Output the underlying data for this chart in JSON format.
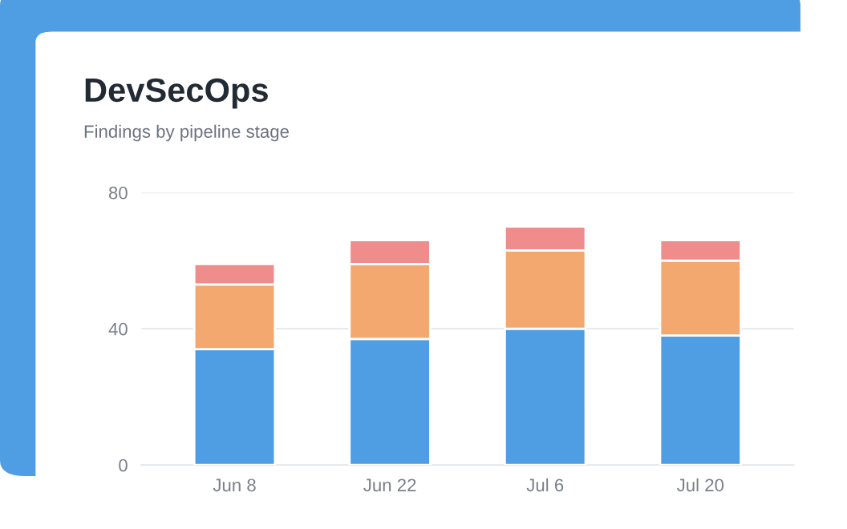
{
  "chart_data": {
    "type": "bar",
    "title": "DevSecOps",
    "subtitle": "Findings by pipeline stage",
    "categories": [
      "Jun 8",
      "Jun 22",
      "Jul 6",
      "Jul 20"
    ],
    "stacked": true,
    "series": [
      {
        "color": "#4f9de2",
        "values": [
          34,
          37,
          40,
          38
        ]
      },
      {
        "color": "#f2a86f",
        "values": [
          19,
          22,
          23,
          22
        ]
      },
      {
        "color": "#ef8c8c",
        "values": [
          6,
          7,
          7,
          6
        ]
      }
    ],
    "ylim": [
      0,
      80
    ],
    "yticks": [
      0,
      40,
      80
    ],
    "grid": "y",
    "legend": false
  }
}
